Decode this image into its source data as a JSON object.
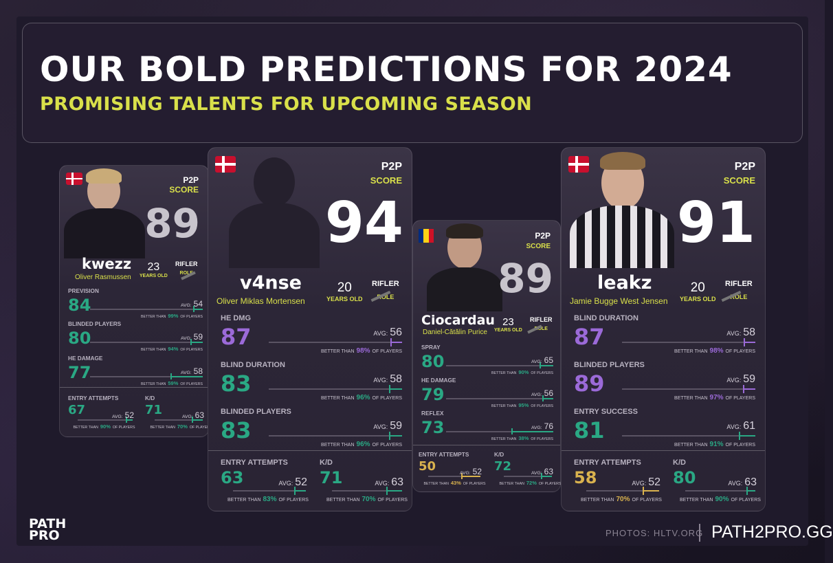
{
  "title": "OUR BOLD PREDICTIONS FOR 2024",
  "subtitle": "PROMISING TALENTS FOR UPCOMING SEASON",
  "labels": {
    "p2p": "P2P",
    "score": "SCORE",
    "years_old": "YEARS OLD",
    "role": "ROLE",
    "avg": "AVG:",
    "better_than": "BETTER THAN",
    "of_players": "OF PLAYERS"
  },
  "players": [
    {
      "nick": "kwezz",
      "name": "Oliver Rasmussen",
      "age": "23",
      "role": "RIFLER",
      "score": "89",
      "flag": "denmark-flag",
      "stats": [
        {
          "label": "PREVISION",
          "value": "84",
          "avg": "54",
          "better": "99%",
          "color": "#2aa884"
        },
        {
          "label": "BLINDED PLAYERS",
          "value": "80",
          "avg": "59",
          "better": "94%",
          "color": "#2aa884"
        },
        {
          "label": "HE DAMAGE",
          "value": "77",
          "avg": "58",
          "better": "59%",
          "color": "#2aa884"
        },
        {
          "label": "ENTRY ATTEMPTS",
          "value": "67",
          "avg": "52",
          "better": "90%",
          "color": "#2aa884"
        },
        {
          "label": "K/D",
          "value": "71",
          "avg": "63",
          "better": "70%",
          "color": "#2aa884"
        }
      ]
    },
    {
      "nick": "v4nse",
      "name": "Oliver Miklas Mortensen",
      "age": "20",
      "role": "RIFLER",
      "score": "94",
      "flag": "denmark-flag",
      "stats": [
        {
          "label": "HE DMG",
          "value": "87",
          "avg": "56",
          "better": "98%",
          "color": "#9b6ad8"
        },
        {
          "label": "BLIND DURATION",
          "value": "83",
          "avg": "58",
          "better": "96%",
          "color": "#2aa884"
        },
        {
          "label": "BLINDED PLAYERS",
          "value": "83",
          "avg": "59",
          "better": "96%",
          "color": "#2aa884"
        },
        {
          "label": "ENTRY ATTEMPTS",
          "value": "63",
          "avg": "52",
          "better": "83%",
          "color": "#2aa884"
        },
        {
          "label": "K/D",
          "value": "71",
          "avg": "63",
          "better": "70%",
          "color": "#2aa884"
        }
      ]
    },
    {
      "nick": "Ciocardau",
      "name": "Daniel-Cătălin Purice",
      "age": "23",
      "role": "RIFLER",
      "score": "89",
      "flag": "romania-flag",
      "stats": [
        {
          "label": "SPRAY",
          "value": "80",
          "avg": "65",
          "better": "90%",
          "color": "#2aa884"
        },
        {
          "label": "HE DAMAGE",
          "value": "79",
          "avg": "56",
          "better": "95%",
          "color": "#2aa884"
        },
        {
          "label": "REFLEX",
          "value": "73",
          "avg": "76",
          "better": "38%",
          "color": "#2aa884"
        },
        {
          "label": "ENTRY ATTEMPTS",
          "value": "50",
          "avg": "52",
          "better": "43%",
          "color": "#d9b24e"
        },
        {
          "label": "K/D",
          "value": "72",
          "avg": "63",
          "better": "72%",
          "color": "#2aa884"
        }
      ]
    },
    {
      "nick": "leakz",
      "name": "Jamie Bugge West Jensen",
      "age": "20",
      "role": "RIFLER",
      "score": "91",
      "flag": "denmark-flag",
      "stats": [
        {
          "label": "BLIND DURATION",
          "value": "87",
          "avg": "58",
          "better": "98%",
          "color": "#9b6ad8"
        },
        {
          "label": "BLINDED PLAYERS",
          "value": "89",
          "avg": "59",
          "better": "97%",
          "color": "#9b6ad8"
        },
        {
          "label": "ENTRY SUCCESS",
          "value": "81",
          "avg": "61",
          "better": "91%",
          "color": "#2aa884"
        },
        {
          "label": "ENTRY ATTEMPTS",
          "value": "58",
          "avg": "52",
          "better": "70%",
          "color": "#d9b24e"
        },
        {
          "label": "K/D",
          "value": "80",
          "avg": "63",
          "better": "90%",
          "color": "#2aa884"
        }
      ]
    }
  ],
  "footer": {
    "logo_line1": "PATH",
    "logo_line2": "PRO",
    "photos_credit": "PHOTOS: HLTV.ORG",
    "site": "PATH2PRO.GG"
  }
}
